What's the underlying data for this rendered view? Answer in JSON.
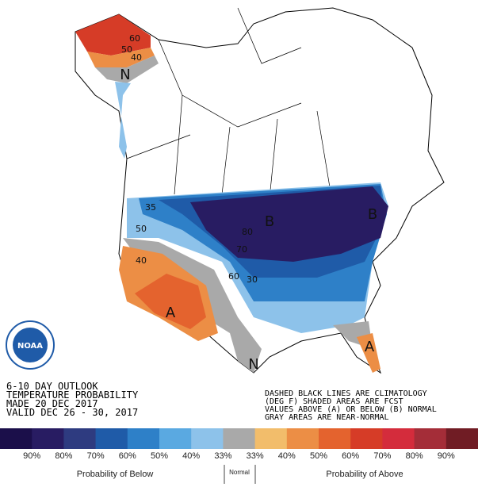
{
  "title_lines": [
    "6-10 DAY OUTLOOK",
    "TEMPERATURE PROBABILITY",
    "MADE  20 DEC 2017",
    "VALID  DEC 26 - 30, 2017"
  ],
  "notes": [
    "DASHED BLACK LINES ARE CLIMATOLOGY",
    "(DEG F) SHADED AREAS ARE FCST",
    "VALUES ABOVE (A) OR BELOW (B) NORMAL",
    "GRAY AREAS ARE NEAR-NORMAL"
  ],
  "logo_text": "NOAA",
  "map_labels": {
    "alaska_60": "60",
    "alaska_50": "50",
    "alaska_40": "40",
    "alaska_n": "N",
    "b_north": "B",
    "b_east": "B",
    "a_sw": "A",
    "a_fl": "A",
    "n_tx": "N",
    "t35": "35",
    "t50": "50",
    "t40": "40",
    "t70": "70",
    "t80": "80",
    "t30": "30",
    "t60": "60"
  },
  "legend": {
    "colors": [
      "#1b0f4a",
      "#281c62",
      "#2e3b80",
      "#1f5ba8",
      "#2e80c8",
      "#5aa9e1",
      "#8dc2ea",
      "#a9a9a9",
      "#f2bd6b",
      "#ec8e45",
      "#e4632e",
      "#d63c27",
      "#d42c3c",
      "#a42d38",
      "#701c24"
    ],
    "labels": [
      "90%",
      "80%",
      "70%",
      "60%",
      "50%",
      "40%",
      "33%",
      "33%",
      "40%",
      "50%",
      "60%",
      "70%",
      "80%",
      "90%"
    ],
    "groups": {
      "below": "Probability of Below",
      "normal": "Normal",
      "above": "Probability of Above"
    }
  }
}
